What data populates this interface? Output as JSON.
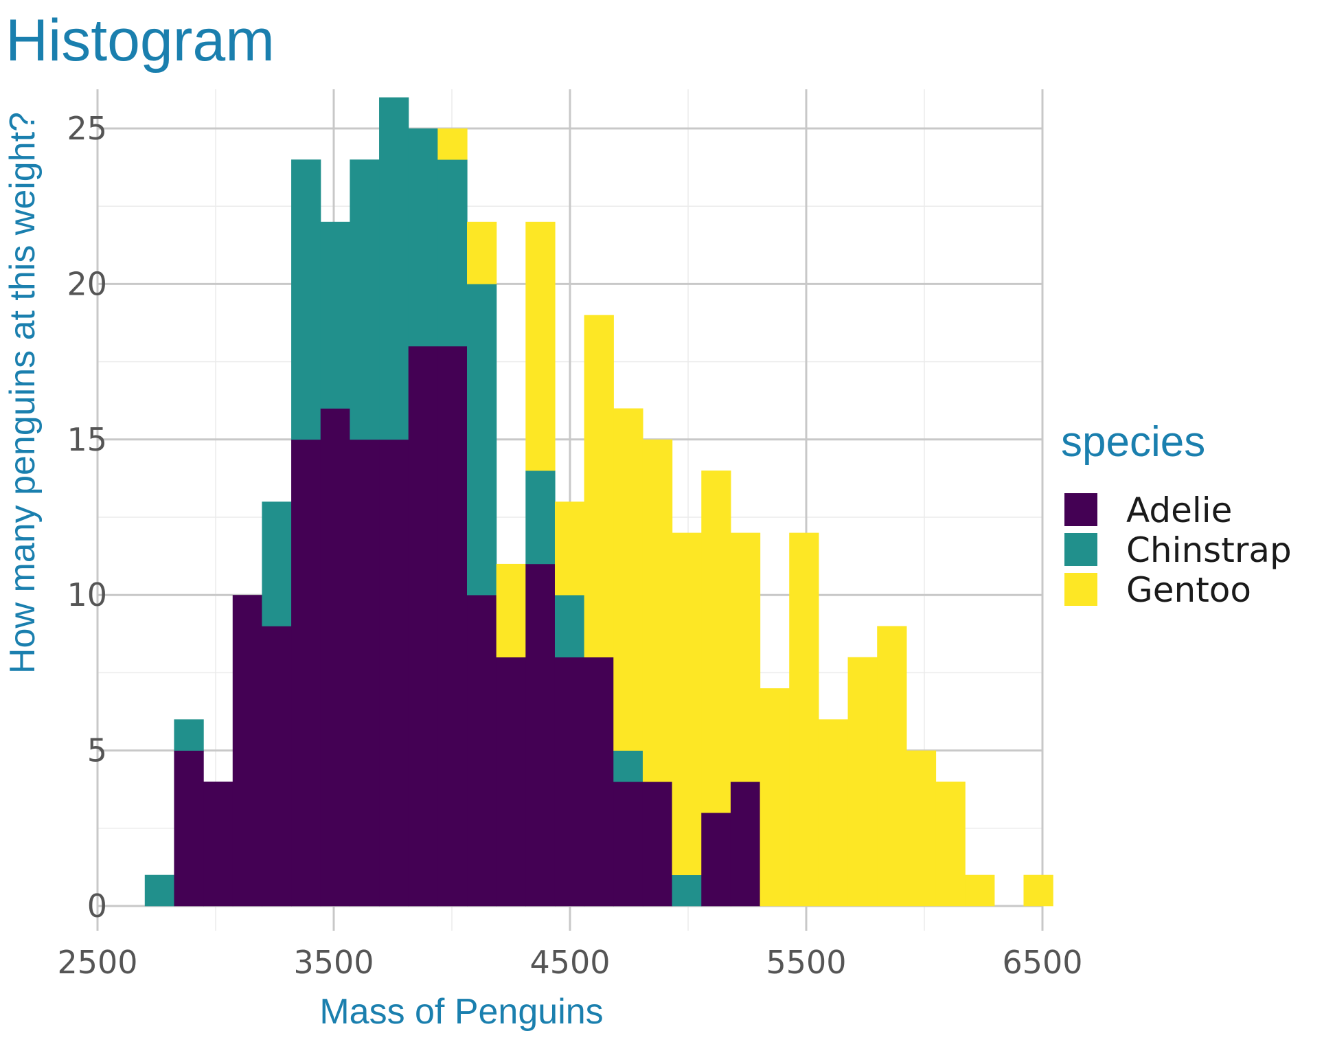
{
  "colors": {
    "accent": "#1a7fae",
    "grid_major": "#c8c8c8",
    "grid_minor": "#ebebeb",
    "Adelie": "#440154",
    "Chinstrap": "#21908c",
    "Gentoo": "#fde725"
  },
  "chart_data": {
    "type": "bar",
    "subtype": "stacked-histogram",
    "title": "Histogram",
    "xlabel": "Mass of Penguins",
    "ylabel": "How many penguins at this weight?",
    "legend_title": "species",
    "legend_position": "right",
    "xlim": [
      2500,
      6500
    ],
    "ylim": [
      0,
      25
    ],
    "xticks": [
      2500,
      3500,
      4500,
      5500,
      6500
    ],
    "xtick_labels": [
      "2500",
      "3500",
      "4500",
      "5500",
      "6500"
    ],
    "yticks": [
      0,
      5,
      10,
      15,
      20,
      25
    ],
    "ytick_labels": [
      "0",
      "5",
      "10",
      "15",
      "20",
      "25"
    ],
    "grid": true,
    "bin_start": 2700,
    "bin_width": 124,
    "series": [
      {
        "name": "Adelie",
        "values": [
          0,
          5,
          4,
          10,
          9,
          15,
          16,
          15,
          15,
          18,
          18,
          10,
          8,
          11,
          8,
          8,
          4,
          4,
          0,
          3,
          4,
          0,
          0,
          0,
          0,
          0,
          0,
          0,
          0,
          0,
          0,
          0
        ]
      },
      {
        "name": "Chinstrap",
        "values": [
          1,
          1,
          0,
          0,
          4,
          9,
          6,
          9,
          11,
          7,
          6,
          10,
          0,
          3,
          2,
          0,
          1,
          0,
          1,
          0,
          0,
          0,
          0,
          0,
          0,
          0,
          0,
          0,
          0,
          0,
          0,
          0
        ]
      },
      {
        "name": "Gentoo",
        "values": [
          0,
          0,
          0,
          0,
          0,
          0,
          0,
          0,
          0,
          0,
          1,
          2,
          3,
          8,
          3,
          11,
          11,
          11,
          11,
          11,
          8,
          7,
          12,
          6,
          8,
          9,
          5,
          4,
          1,
          0,
          1,
          0
        ]
      }
    ]
  }
}
